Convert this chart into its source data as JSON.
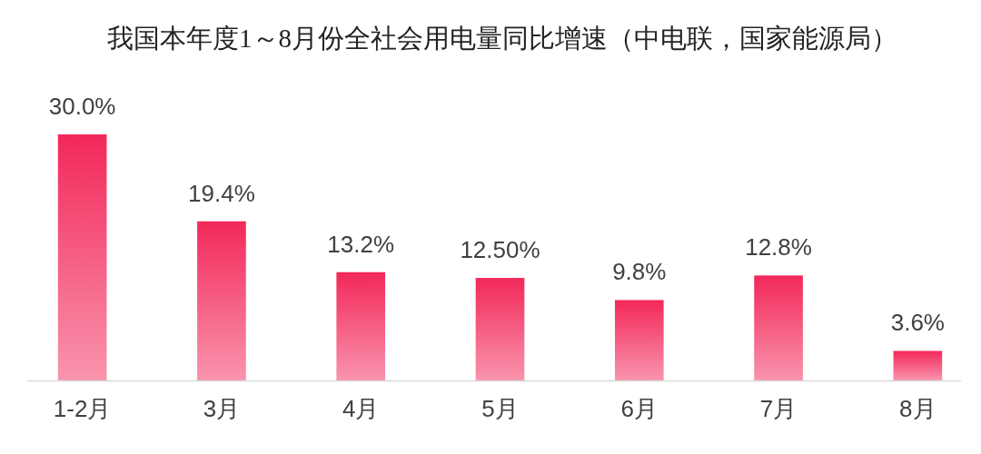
{
  "chart_data": {
    "type": "bar",
    "title": "我国本年度1～8月份全社会用电量同比增速（中电联，国家能源局）",
    "categories": [
      "1-2月",
      "3月",
      "4月",
      "5月",
      "6月",
      "7月",
      "8月"
    ],
    "values": [
      30.0,
      19.4,
      13.2,
      12.5,
      9.8,
      12.8,
      3.6
    ],
    "value_labels": [
      "30.0%",
      "19.4%",
      "13.2%",
      "12.50%",
      "9.8%",
      "12.8%",
      "3.6%"
    ],
    "color": "#f2285a"
  }
}
